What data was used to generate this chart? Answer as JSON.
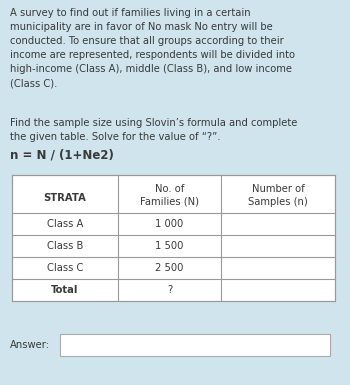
{
  "bg_color": "#cfe4ed",
  "text_color": "#3a3a3a",
  "paragraph1": "A survey to find out if families living in a certain\nmunicipality are in favor of No mask No entry will be\nconducted. To ensure that all groups according to their\nincome are represented, respondents will be divided into\nhigh-income (Class A), middle (Class B), and low income\n(Class C).",
  "paragraph2": "Find the sample size using Slovin’s formula and complete\nthe given table. Solve for the value of “?”.",
  "formula": "n = N / (1+Ne2)",
  "table_header_col1": "STRATA",
  "table_header_col2_line1": "No. of",
  "table_header_col2_line2": "Families (N)",
  "table_header_col3_line1": "Number of",
  "table_header_col3_line2": "Samples (n)",
  "table_rows": [
    [
      "Class A",
      "1 000",
      ""
    ],
    [
      "Class B",
      "1 500",
      ""
    ],
    [
      "Class C",
      "2 500",
      ""
    ],
    [
      "Total",
      "?",
      ""
    ]
  ],
  "answer_label": "Answer:",
  "fs_body": 7.2,
  "fs_formula": 8.5,
  "fs_table": 7.2
}
